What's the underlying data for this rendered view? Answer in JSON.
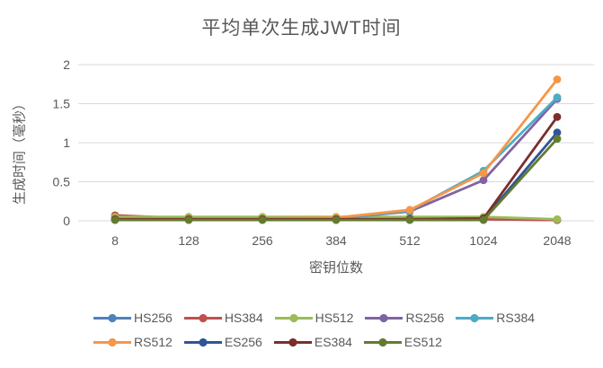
{
  "style": {
    "background": "#FFFFFF",
    "text_color": "#595959",
    "grid_color": "#D9D9D9"
  },
  "chart_data": {
    "type": "line",
    "title": "平均单次生成JWT时间",
    "xlabel": "密钥位数",
    "ylabel": "生成时间（毫秒）",
    "categories": [
      "8",
      "128",
      "256",
      "384",
      "512",
      "1024",
      "2048"
    ],
    "yticks": [
      "0",
      "0.5",
      "1",
      "1.5",
      "2"
    ],
    "ylim": [
      0,
      2
    ],
    "grid": "horizontal-only",
    "legend_position": "bottom",
    "marker": "circle",
    "series": [
      {
        "name": "HS256",
        "color": "#4F81BD",
        "values": [
          0.03,
          0.02,
          0.02,
          0.02,
          0.02,
          0.02,
          0.01
        ]
      },
      {
        "name": "HS384",
        "color": "#C0504D",
        "values": [
          0.07,
          0.03,
          0.03,
          0.03,
          0.03,
          0.02,
          0.01
        ]
      },
      {
        "name": "HS512",
        "color": "#9BBB59",
        "values": [
          0.05,
          0.05,
          0.05,
          0.05,
          0.05,
          0.05,
          0.02
        ]
      },
      {
        "name": "RS256",
        "color": "#8064A2",
        "values": [
          0.02,
          0.02,
          0.02,
          0.03,
          0.12,
          0.52,
          1.56
        ]
      },
      {
        "name": "RS384",
        "color": "#4BACC6",
        "values": [
          0.02,
          0.02,
          0.03,
          0.03,
          0.13,
          0.64,
          1.58
        ]
      },
      {
        "name": "RS512",
        "color": "#F79646",
        "values": [
          0.03,
          0.03,
          0.03,
          0.04,
          0.14,
          0.61,
          1.81
        ]
      },
      {
        "name": "ES256",
        "color": "#2F5597",
        "values": [
          0.02,
          0.02,
          0.02,
          0.02,
          0.02,
          0.02,
          1.13
        ]
      },
      {
        "name": "ES384",
        "color": "#7B2E2B",
        "values": [
          0.02,
          0.02,
          0.02,
          0.02,
          0.02,
          0.03,
          1.33
        ]
      },
      {
        "name": "ES512",
        "color": "#637B31",
        "values": [
          0.01,
          0.01,
          0.01,
          0.01,
          0.01,
          0.01,
          1.05
        ]
      }
    ],
    "legend_rows": [
      [
        "HS256",
        "HS384",
        "HS512",
        "RS256",
        "RS384"
      ],
      [
        "RS512",
        "ES256",
        "ES384",
        "ES512"
      ]
    ]
  }
}
